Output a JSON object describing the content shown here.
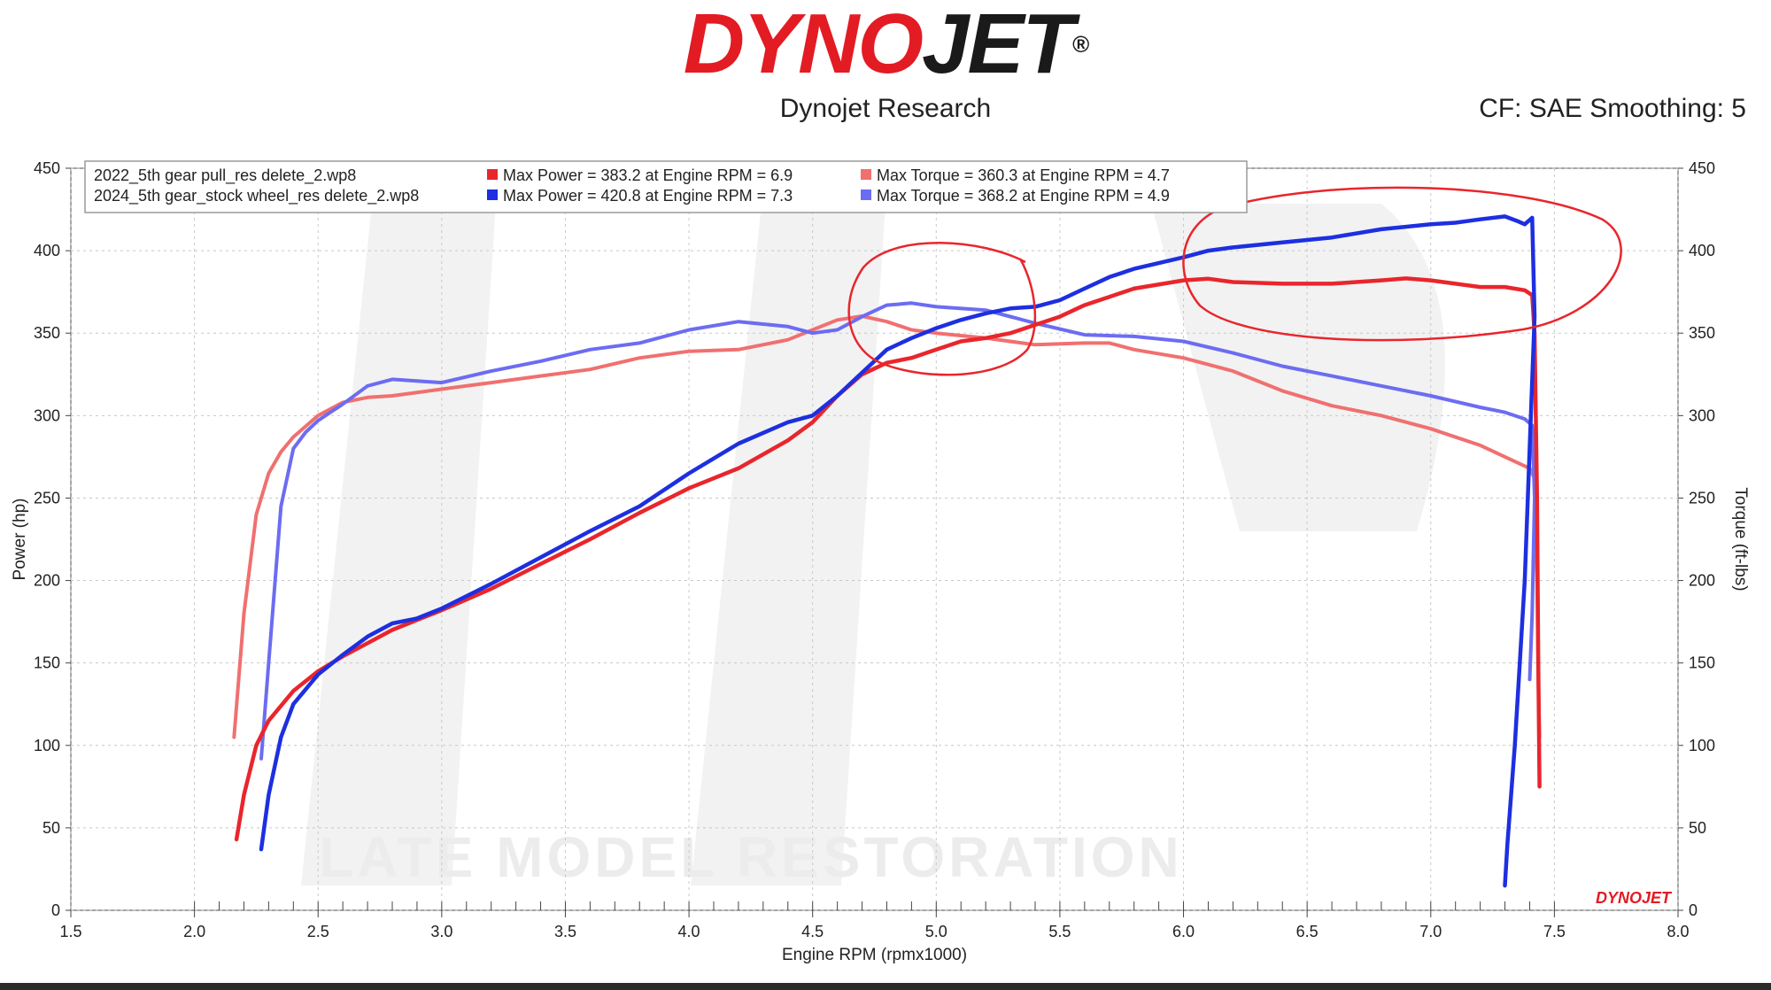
{
  "header": {
    "logo_dyno": "DYNO",
    "logo_jet": "JET",
    "logo_reg": "®",
    "subtitle": "Dynojet Research",
    "cf_label": "CF: SAE Smoothing: 5"
  },
  "watermark": {
    "text": "LATE MODEL RESTORATION",
    "corner_logo": "DYNOJET"
  },
  "colors": {
    "power_2022": "#e8262c",
    "torque_2022": "#f07070",
    "power_2024": "#1d2fe0",
    "torque_2024": "#6c6cf2",
    "annotation": "#e8262c"
  },
  "chart_data": {
    "type": "line",
    "xlabel": "Engine RPM (rpmx1000)",
    "ylabel_left": "Power (hp)",
    "ylabel_right": "Torque (ft-lbs)",
    "xlim": [
      1.5,
      8.0
    ],
    "ylim": [
      0,
      450
    ],
    "x_ticks": [
      "1.5",
      "2.0",
      "2.5",
      "3.0",
      "3.5",
      "4.0",
      "4.5",
      "5.0",
      "5.5",
      "6.0",
      "6.5",
      "7.0",
      "7.5",
      "8.0"
    ],
    "y_ticks": [
      "0",
      "50",
      "100",
      "150",
      "200",
      "250",
      "300",
      "350",
      "400",
      "450"
    ],
    "grid": true,
    "legend": {
      "placement": "top-left",
      "files": [
        "2022_5th gear pull_res delete_2.wp8",
        "2024_5th gear_stock wheel_res delete_2.wp8"
      ],
      "entries": [
        "Max Power = 383.2 at Engine RPM = 6.9",
        "Max Torque = 360.3 at Engine RPM = 4.7",
        "Max Power = 420.8 at Engine RPM = 7.3",
        "Max Torque = 368.2 at Engine RPM = 4.9"
      ]
    },
    "series": [
      {
        "key": "power_2022",
        "points": [
          [
            2.17,
            43
          ],
          [
            2.2,
            70
          ],
          [
            2.25,
            100
          ],
          [
            2.3,
            115
          ],
          [
            2.4,
            133
          ],
          [
            2.5,
            145
          ],
          [
            2.6,
            154
          ],
          [
            2.7,
            162
          ],
          [
            2.8,
            170
          ],
          [
            2.9,
            176
          ],
          [
            3.0,
            182
          ],
          [
            3.2,
            195
          ],
          [
            3.4,
            210
          ],
          [
            3.6,
            225
          ],
          [
            3.8,
            241
          ],
          [
            4.0,
            256
          ],
          [
            4.2,
            268
          ],
          [
            4.4,
            285
          ],
          [
            4.5,
            296
          ],
          [
            4.6,
            312
          ],
          [
            4.7,
            325
          ],
          [
            4.8,
            332
          ],
          [
            4.9,
            335
          ],
          [
            5.0,
            340
          ],
          [
            5.1,
            345
          ],
          [
            5.2,
            347
          ],
          [
            5.3,
            350
          ],
          [
            5.4,
            355
          ],
          [
            5.5,
            360
          ],
          [
            5.6,
            367
          ],
          [
            5.7,
            372
          ],
          [
            5.8,
            377
          ],
          [
            6.0,
            382
          ],
          [
            6.1,
            383
          ],
          [
            6.2,
            381
          ],
          [
            6.4,
            380
          ],
          [
            6.6,
            380
          ],
          [
            6.8,
            382
          ],
          [
            6.9,
            383.2
          ],
          [
            7.0,
            382
          ],
          [
            7.1,
            380
          ],
          [
            7.2,
            378
          ],
          [
            7.3,
            378
          ],
          [
            7.38,
            376
          ],
          [
            7.41,
            373
          ],
          [
            7.42,
            350
          ],
          [
            7.43,
            250
          ],
          [
            7.435,
            150
          ],
          [
            7.44,
            75
          ]
        ]
      },
      {
        "key": "torque_2022",
        "points": [
          [
            2.16,
            105
          ],
          [
            2.2,
            180
          ],
          [
            2.25,
            240
          ],
          [
            2.3,
            265
          ],
          [
            2.35,
            278
          ],
          [
            2.4,
            287
          ],
          [
            2.5,
            300
          ],
          [
            2.6,
            308
          ],
          [
            2.7,
            311
          ],
          [
            2.8,
            312
          ],
          [
            3.0,
            316
          ],
          [
            3.2,
            320
          ],
          [
            3.4,
            324
          ],
          [
            3.6,
            328
          ],
          [
            3.8,
            335
          ],
          [
            4.0,
            339
          ],
          [
            4.2,
            340
          ],
          [
            4.4,
            346
          ],
          [
            4.5,
            352
          ],
          [
            4.6,
            358
          ],
          [
            4.7,
            360.3
          ],
          [
            4.8,
            357
          ],
          [
            4.9,
            352
          ],
          [
            5.0,
            350
          ],
          [
            5.2,
            347
          ],
          [
            5.4,
            343
          ],
          [
            5.6,
            344
          ],
          [
            5.7,
            344
          ],
          [
            5.8,
            340
          ],
          [
            6.0,
            335
          ],
          [
            6.2,
            327
          ],
          [
            6.4,
            315
          ],
          [
            6.6,
            306
          ],
          [
            6.8,
            300
          ],
          [
            7.0,
            292
          ],
          [
            7.2,
            282
          ],
          [
            7.3,
            275
          ],
          [
            7.4,
            268
          ],
          [
            7.42,
            262
          ],
          [
            7.43,
            200
          ],
          [
            7.435,
            140
          ],
          [
            7.44,
            105
          ]
        ]
      },
      {
        "key": "power_2024",
        "points": [
          [
            2.27,
            37
          ],
          [
            2.3,
            70
          ],
          [
            2.35,
            105
          ],
          [
            2.4,
            125
          ],
          [
            2.5,
            143
          ],
          [
            2.6,
            155
          ],
          [
            2.7,
            166
          ],
          [
            2.8,
            174
          ],
          [
            2.9,
            177
          ],
          [
            3.0,
            183
          ],
          [
            3.2,
            198
          ],
          [
            3.4,
            214
          ],
          [
            3.6,
            230
          ],
          [
            3.8,
            245
          ],
          [
            4.0,
            265
          ],
          [
            4.2,
            283
          ],
          [
            4.4,
            296
          ],
          [
            4.5,
            300
          ],
          [
            4.6,
            312
          ],
          [
            4.7,
            326
          ],
          [
            4.8,
            340
          ],
          [
            4.9,
            347
          ],
          [
            5.0,
            353
          ],
          [
            5.1,
            358
          ],
          [
            5.2,
            362
          ],
          [
            5.3,
            365
          ],
          [
            5.4,
            366
          ],
          [
            5.5,
            370
          ],
          [
            5.6,
            377
          ],
          [
            5.7,
            384
          ],
          [
            5.8,
            389
          ],
          [
            6.0,
            396
          ],
          [
            6.1,
            400
          ],
          [
            6.2,
            402
          ],
          [
            6.4,
            405
          ],
          [
            6.6,
            408
          ],
          [
            6.8,
            413
          ],
          [
            7.0,
            416
          ],
          [
            7.1,
            417
          ],
          [
            7.2,
            419
          ],
          [
            7.3,
            420.8
          ],
          [
            7.35,
            418
          ],
          [
            7.38,
            416
          ],
          [
            7.41,
            420
          ],
          [
            7.42,
            360
          ],
          [
            7.38,
            200
          ],
          [
            7.34,
            100
          ],
          [
            7.31,
            40
          ],
          [
            7.3,
            15
          ]
        ]
      },
      {
        "key": "torque_2024",
        "points": [
          [
            2.27,
            92
          ],
          [
            2.3,
            150
          ],
          [
            2.35,
            245
          ],
          [
            2.4,
            280
          ],
          [
            2.45,
            290
          ],
          [
            2.5,
            297
          ],
          [
            2.6,
            307
          ],
          [
            2.7,
            318
          ],
          [
            2.8,
            322
          ],
          [
            3.0,
            320
          ],
          [
            3.2,
            327
          ],
          [
            3.4,
            333
          ],
          [
            3.6,
            340
          ],
          [
            3.8,
            344
          ],
          [
            4.0,
            352
          ],
          [
            4.2,
            357
          ],
          [
            4.4,
            354
          ],
          [
            4.5,
            350
          ],
          [
            4.6,
            352
          ],
          [
            4.7,
            360
          ],
          [
            4.8,
            367
          ],
          [
            4.9,
            368.2
          ],
          [
            5.0,
            366
          ],
          [
            5.2,
            364
          ],
          [
            5.4,
            356
          ],
          [
            5.6,
            349
          ],
          [
            5.8,
            348
          ],
          [
            6.0,
            345
          ],
          [
            6.2,
            338
          ],
          [
            6.4,
            330
          ],
          [
            6.6,
            324
          ],
          [
            6.8,
            318
          ],
          [
            7.0,
            312
          ],
          [
            7.2,
            305
          ],
          [
            7.3,
            302
          ],
          [
            7.38,
            298
          ],
          [
            7.41,
            294
          ],
          [
            7.42,
            250
          ],
          [
            7.41,
            180
          ],
          [
            7.4,
            140
          ]
        ]
      }
    ]
  }
}
